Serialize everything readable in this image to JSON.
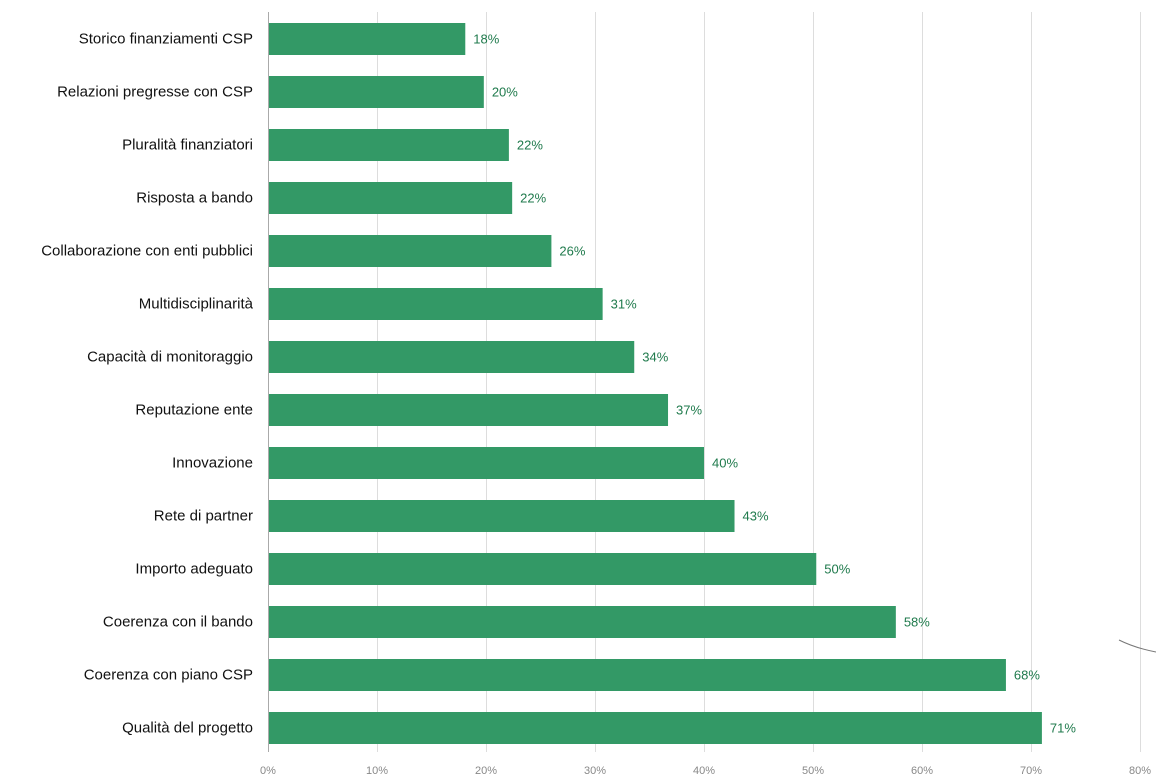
{
  "chart_data": {
    "type": "bar",
    "orientation": "horizontal",
    "categories": [
      "Storico finanziamenti CSP",
      "Relazioni pregresse con CSP",
      "Pluralità finanziatori",
      "Risposta a bando",
      "Collaborazione con enti pubblici",
      "Multidisciplinarità",
      "Capacità di monitoraggio",
      "Reputazione ente",
      "Innovazione",
      "Rete di partner",
      "Importo adeguato",
      "Coerenza con il bando",
      "Coerenza con piano CSP",
      "Qualità del progetto"
    ],
    "values": [
      18.1,
      19.8,
      22.1,
      22.4,
      26.0,
      30.7,
      33.6,
      36.7,
      40.0,
      42.8,
      50.3,
      57.6,
      67.7,
      71.0
    ],
    "value_labels": [
      "18%",
      "20%",
      "22%",
      "22%",
      "26%",
      "31%",
      "34%",
      "37%",
      "40%",
      "43%",
      "50%",
      "58%",
      "68%",
      "71%"
    ],
    "x_ticks": [
      0,
      10,
      20,
      30,
      40,
      50,
      60,
      70,
      80
    ],
    "x_tick_labels": [
      "0%",
      "10%",
      "20%",
      "30%",
      "40%",
      "50%",
      "60%",
      "70%",
      "80%"
    ],
    "xlim": [
      0,
      80
    ],
    "grid": true,
    "title": "",
    "xlabel": "",
    "ylabel": "",
    "colors": {
      "bar": "#339966",
      "value_label": "#1f7a4c",
      "grid": "#dddddd",
      "axis": "#aaaaaa",
      "decoration": "#777777"
    }
  }
}
